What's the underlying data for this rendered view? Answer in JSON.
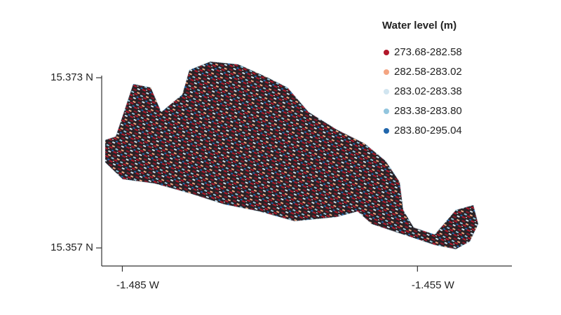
{
  "map": {
    "legend": {
      "title": "Water level (m)",
      "items": [
        {
          "label": "273.68-282.58",
          "color": "#b2182b"
        },
        {
          "label": "282.58-283.02",
          "color": "#f4a582"
        },
        {
          "label": "283.02-283.38",
          "color": "#d1e5f0"
        },
        {
          "label": "283.38-283.80",
          "color": "#92c5de"
        },
        {
          "label": "283.80-295.04",
          "color": "#2166ac"
        }
      ]
    },
    "xlim": [
      -1.4871,
      -1.4454
    ],
    "ylim": [
      15.3553,
      15.3732
    ],
    "xticks": [
      {
        "value": -1.485,
        "label": "-1.485 W"
      },
      {
        "value": -1.455,
        "label": "-1.455 W"
      }
    ],
    "yticks": [
      {
        "value": 15.373,
        "label": "15.373 N"
      },
      {
        "value": 15.357,
        "label": "15.357 N"
      }
    ]
  }
}
